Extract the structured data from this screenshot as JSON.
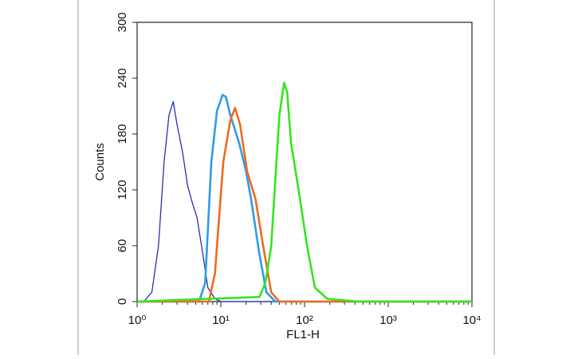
{
  "chart_data": {
    "type": "line",
    "x_label": "FL1-H",
    "y_label": "Counts",
    "xscale": "log",
    "xlim": [
      1,
      10000
    ],
    "xticks": [
      {
        "value": 1,
        "label": "10⁰"
      },
      {
        "value": 10,
        "label": "10¹"
      },
      {
        "value": 100,
        "label": "10²"
      },
      {
        "value": 1000,
        "label": "10³"
      },
      {
        "value": 10000,
        "label": "10⁴"
      }
    ],
    "ylim": [
      0,
      300
    ],
    "yticks": [
      0,
      60,
      120,
      180,
      240,
      300
    ],
    "series": [
      {
        "color": "#2a2fb0",
        "x": [
          1,
          1.2,
          1.5,
          1.8,
          2.1,
          2.4,
          2.7,
          3.0,
          3.5,
          4.0,
          4.5,
          5.2,
          6.0,
          7.0,
          8.5,
          10,
          10000
        ],
        "values": [
          0,
          0,
          10,
          60,
          150,
          200,
          215,
          190,
          160,
          125,
          108,
          90,
          55,
          15,
          3,
          0,
          0
        ]
      },
      {
        "color": "#2f9be8",
        "x": [
          1,
          5.5,
          6.5,
          7.7,
          9.0,
          10.5,
          11.5,
          13,
          16.6,
          20,
          23,
          29,
          35,
          45,
          10000
        ],
        "values": [
          0,
          0,
          20,
          150,
          205,
          222,
          220,
          200,
          170,
          140,
          110,
          50,
          10,
          0,
          0
        ]
      },
      {
        "color": "#f06a1e",
        "x": [
          1,
          7.2,
          8.5,
          10.7,
          13,
          14.8,
          17,
          20.6,
          26,
          32,
          40,
          50,
          10000
        ],
        "values": [
          0,
          0,
          30,
          150,
          195,
          208,
          190,
          140,
          110,
          60,
          10,
          0,
          0
        ]
      },
      {
        "color": "#33e61c",
        "x": [
          1,
          29,
          34,
          40,
          50,
          57,
          62,
          69,
          85,
          107,
          133,
          186,
          450,
          10000
        ],
        "values": [
          0,
          5,
          20,
          60,
          200,
          235,
          225,
          170,
          120,
          60,
          15,
          3,
          0,
          0
        ]
      }
    ]
  }
}
